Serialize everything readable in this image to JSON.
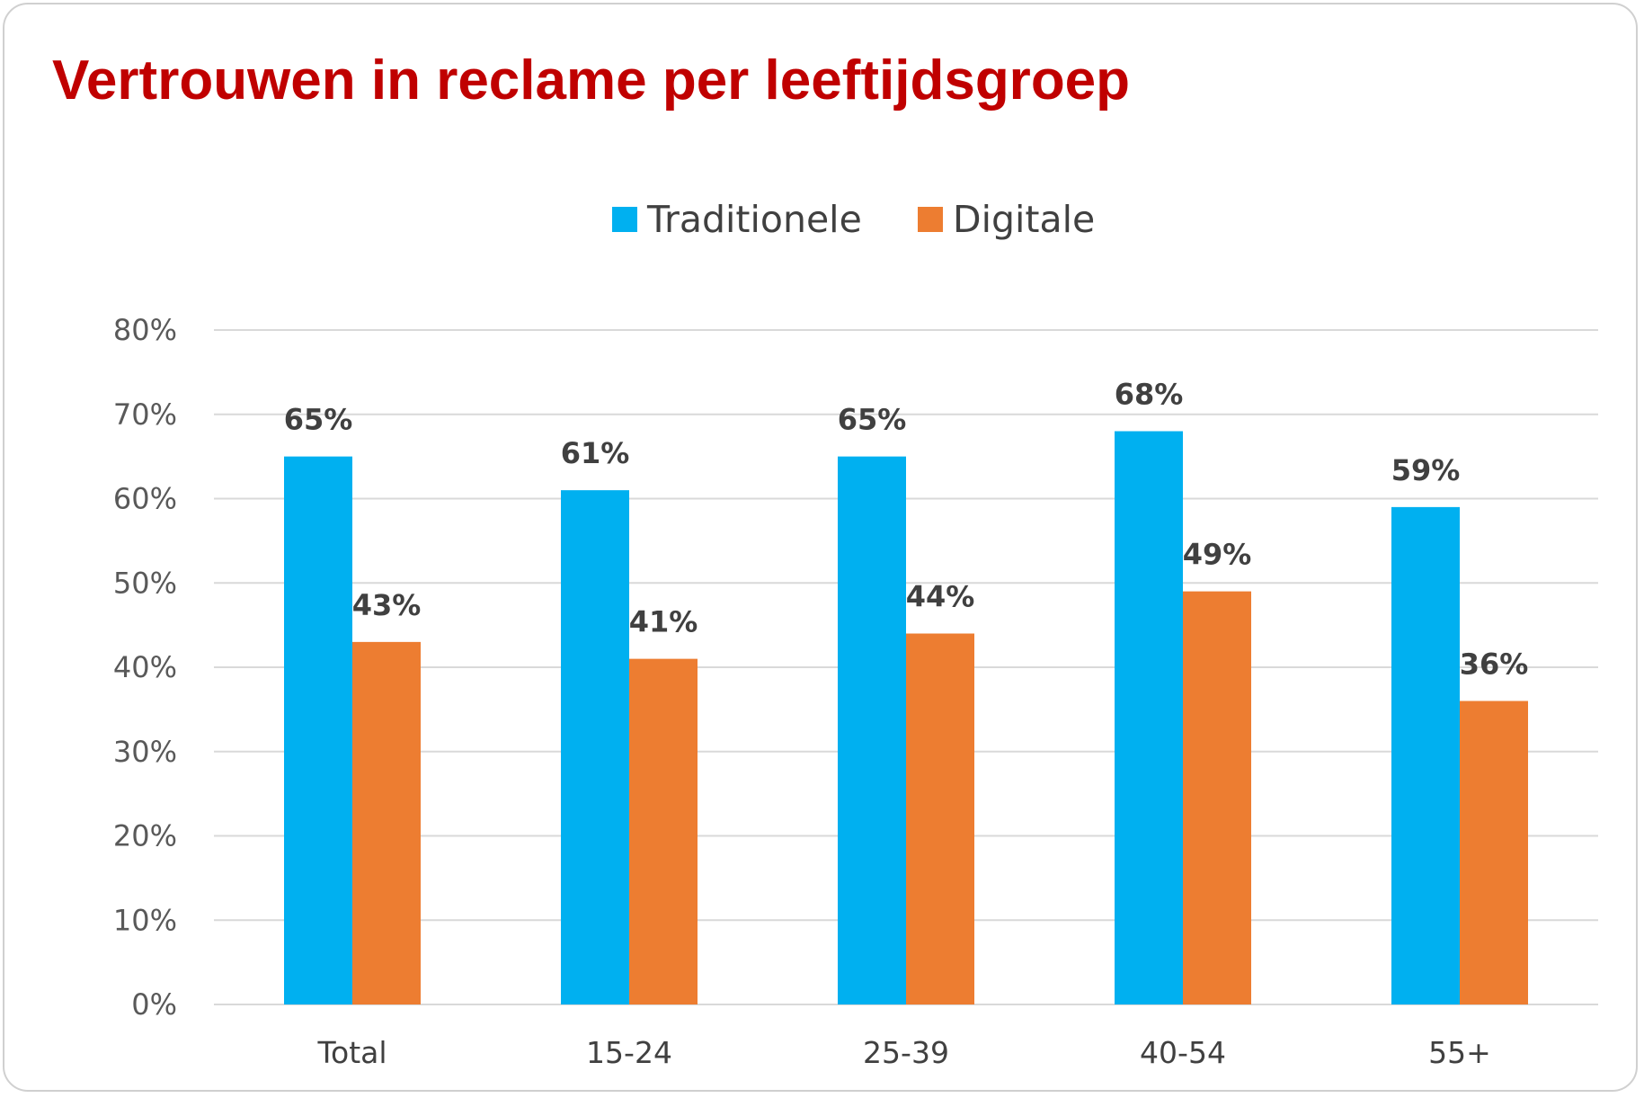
{
  "chart_data": {
    "type": "bar",
    "title": "Vertrouwen in reclame per leeftijdsgroep",
    "categories": [
      "Total",
      "15-24",
      "25-39",
      "40-54",
      "55+"
    ],
    "series": [
      {
        "name": "Traditionele",
        "values": [
          65,
          61,
          65,
          68,
          59
        ],
        "color": "#00b0f0"
      },
      {
        "name": "Digitale",
        "values": [
          43,
          41,
          44,
          49,
          36
        ],
        "color": "#ed7d31"
      }
    ],
    "value_labels": {
      "Traditionele": [
        "65%",
        "61%",
        "65%",
        "68%",
        "59%"
      ],
      "Digitale": [
        "43%",
        "41%",
        "44%",
        "49%",
        "36%"
      ]
    },
    "yticks": [
      0,
      10,
      20,
      30,
      40,
      50,
      60,
      70,
      80
    ],
    "ytick_labels": [
      "0%",
      "10%",
      "20%",
      "30%",
      "40%",
      "50%",
      "60%",
      "70%",
      "80%"
    ],
    "ylim": [
      0,
      80
    ],
    "unit": "%",
    "grid": true,
    "legend_position": "top-center",
    "xlabel": "",
    "ylabel": ""
  }
}
